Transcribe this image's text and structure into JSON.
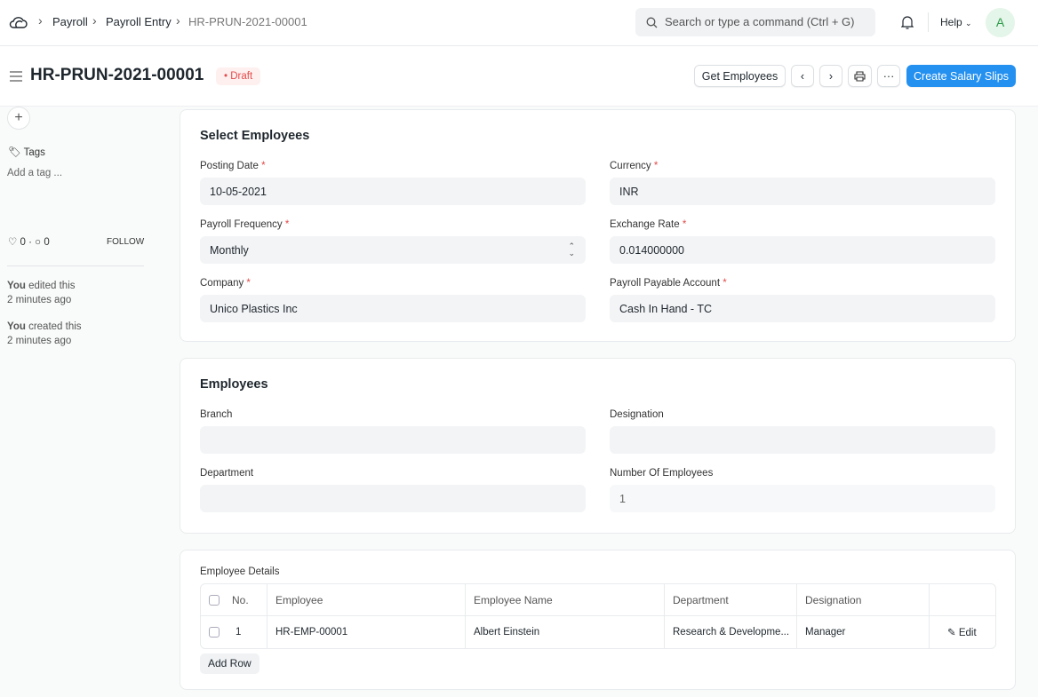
{
  "navbar": {
    "breadcrumbs": [
      "Payroll",
      "Payroll Entry",
      "HR-PRUN-2021-00001"
    ],
    "search_placeholder": "Search or type a command (Ctrl + G)",
    "help": "Help",
    "avatar": "A"
  },
  "header": {
    "title": "HR-PRUN-2021-00001",
    "status": "Draft",
    "get_employees": "Get Employees",
    "more": "···",
    "create": "Create Salary Slips"
  },
  "sidebar": {
    "tags_label": "Tags",
    "add_tag": "Add a tag ...",
    "likes": "0",
    "comments": "0",
    "follow": "FOLLOW",
    "activity": [
      {
        "who": "You",
        "what": " edited this",
        "when": "2 minutes ago"
      },
      {
        "who": "You",
        "what": " created this",
        "when": "2 minutes ago"
      }
    ]
  },
  "select_employees": {
    "title": "Select Employees",
    "posting_date_label": "Posting Date",
    "posting_date": "10-05-2021",
    "currency_label": "Currency",
    "currency": "INR",
    "frequency_label": "Payroll Frequency",
    "frequency": "Monthly",
    "exchange_rate_label": "Exchange Rate",
    "exchange_rate": "0.014000000",
    "company_label": "Company",
    "company": "Unico Plastics Inc",
    "payable_label": "Payroll Payable Account",
    "payable": "Cash In Hand - TC"
  },
  "employees": {
    "title": "Employees",
    "branch_label": "Branch",
    "branch": "",
    "designation_label": "Designation",
    "designation": "",
    "department_label": "Department",
    "department": "",
    "count_label": "Number Of Employees",
    "count": "1"
  },
  "details": {
    "label": "Employee Details",
    "columns": [
      "No.",
      "Employee",
      "Employee Name",
      "Department",
      "Designation"
    ],
    "rows": [
      {
        "no": "1",
        "employee": "HR-EMP-00001",
        "name": "Albert Einstein",
        "department": "Research & Developme...",
        "designation": "Manager"
      }
    ],
    "edit": "Edit",
    "add_row": "Add Row"
  },
  "colors": {
    "primary": "#2490ef",
    "draft": "#e24c4c"
  }
}
